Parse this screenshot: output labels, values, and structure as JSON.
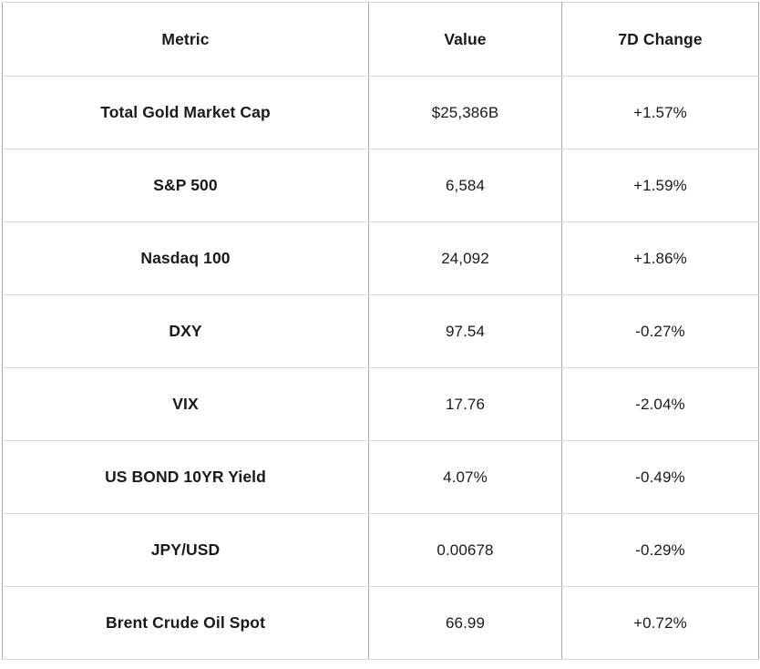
{
  "chart_data": {
    "type": "table",
    "columns": [
      "Metric",
      "Value",
      "7D Change"
    ],
    "rows": [
      [
        "Total Gold Market Cap",
        "$25,386B",
        "+1.57%"
      ],
      [
        "S&P 500",
        "6,584",
        "+1.59%"
      ],
      [
        "Nasdaq 100",
        "24,092",
        "+1.86%"
      ],
      [
        "DXY",
        "97.54",
        "-0.27%"
      ],
      [
        "VIX",
        "17.76",
        "-2.04%"
      ],
      [
        "US BOND 10YR Yield",
        "4.07%",
        "-0.49%"
      ],
      [
        "JPY/USD",
        "0.00678",
        "-0.29%"
      ],
      [
        "Brent Crude Oil Spot",
        "66.99",
        "+0.72%"
      ]
    ],
    "title": "",
    "legend": false,
    "grid": true
  },
  "colors": {
    "text": "#1a1a1a",
    "border_vertical": "#ababab",
    "border_horizontal": "#d8d8d8",
    "background": "#ffffff"
  }
}
